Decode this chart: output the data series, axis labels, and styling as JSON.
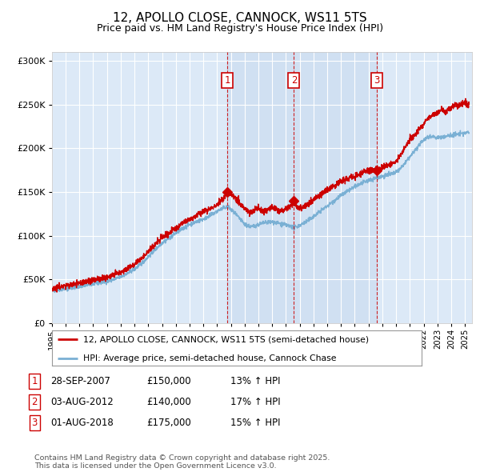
{
  "title": "12, APOLLO CLOSE, CANNOCK, WS11 5TS",
  "subtitle": "Price paid vs. HM Land Registry's House Price Index (HPI)",
  "xlim_start": 1995.0,
  "xlim_end": 2025.5,
  "ylim_min": 0,
  "ylim_max": 310000,
  "yticks": [
    0,
    50000,
    100000,
    150000,
    200000,
    250000,
    300000
  ],
  "ytick_labels": [
    "£0",
    "£50K",
    "£100K",
    "£150K",
    "£200K",
    "£250K",
    "£300K"
  ],
  "background_color": "#ffffff",
  "plot_bg_color": "#dce9f7",
  "shade_color": "#c8dbf0",
  "grid_color": "#ffffff",
  "hpi_color": "#7ab0d4",
  "price_color": "#cc0000",
  "annotation_color": "#cc0000",
  "transactions": [
    {
      "date": 2007.74,
      "price": 150000,
      "label": "1"
    },
    {
      "date": 2012.58,
      "price": 140000,
      "label": "2"
    },
    {
      "date": 2018.58,
      "price": 175000,
      "label": "3"
    }
  ],
  "legend_line1": "12, APOLLO CLOSE, CANNOCK, WS11 5TS (semi-detached house)",
  "legend_line2": "HPI: Average price, semi-detached house, Cannock Chase",
  "table_rows": [
    [
      "1",
      "28-SEP-2007",
      "£150,000",
      "13% ↑ HPI"
    ],
    [
      "2",
      "03-AUG-2012",
      "£140,000",
      "17% ↑ HPI"
    ],
    [
      "3",
      "01-AUG-2018",
      "£175,000",
      "15% ↑ HPI"
    ]
  ],
  "footer": "Contains HM Land Registry data © Crown copyright and database right 2025.\nThis data is licensed under the Open Government Licence v3.0."
}
